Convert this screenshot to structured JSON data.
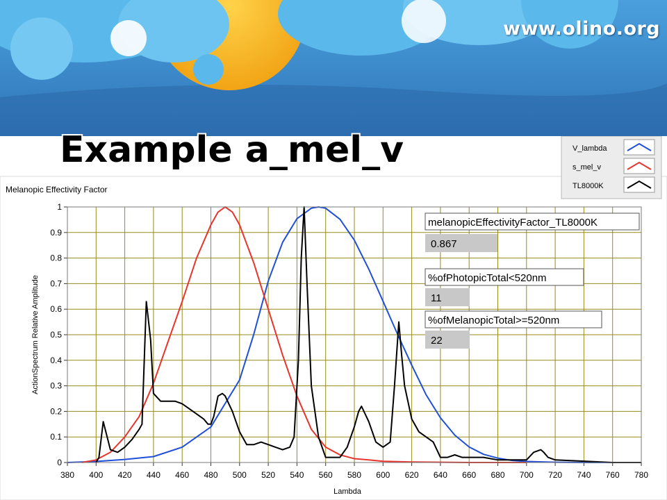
{
  "header": {
    "url": "www.olino.org",
    "slide_title": "Example a_mel_v"
  },
  "colors": {
    "sky": "#3d8fd1",
    "sky_dark": "#2a6db0",
    "sun": "#f5a912",
    "cloud": "#5ab8ea",
    "grid": "#9a8a1a",
    "v_lambda": "#1f4fd8",
    "s_mel_v": "#e8342c",
    "tl8000k": "#000000",
    "indicator_bg": "#c8c8c8"
  },
  "chart_data": {
    "type": "line",
    "title": "Melanopic Effectivity Factor",
    "xlabel": "Lambda",
    "ylabel": "ActionSpectrum Relative Amplitude",
    "xlim": [
      380,
      780
    ],
    "ylim": [
      0,
      1
    ],
    "xticks": [
      "380",
      "400",
      "420",
      "440",
      "460",
      "480",
      "500",
      "520",
      "540",
      "560",
      "580",
      "600",
      "620",
      "640",
      "660",
      "680",
      "700",
      "720",
      "740",
      "760",
      "780"
    ],
    "yticks": [
      "0",
      "0.1",
      "0.2",
      "0.3",
      "0.4",
      "0.5",
      "0.6",
      "0.7",
      "0.8",
      "0.9",
      "1"
    ],
    "grid": true,
    "legend_position": "top-right",
    "series": [
      {
        "name": "V_lambda",
        "x": [
          380,
          400,
          420,
          440,
          460,
          480,
          500,
          510,
          520,
          530,
          540,
          550,
          555,
          560,
          570,
          580,
          590,
          600,
          610,
          620,
          630,
          640,
          650,
          660,
          670,
          680,
          690,
          700,
          720,
          740,
          780
        ],
        "values": [
          0.0,
          0.004,
          0.012,
          0.023,
          0.06,
          0.139,
          0.323,
          0.503,
          0.71,
          0.862,
          0.954,
          0.995,
          1.0,
          0.995,
          0.952,
          0.87,
          0.757,
          0.631,
          0.503,
          0.381,
          0.265,
          0.175,
          0.107,
          0.061,
          0.032,
          0.017,
          0.008,
          0.004,
          0.001,
          0.0,
          0.0
        ]
      },
      {
        "name": "s_mel_v",
        "x": [
          390,
          400,
          410,
          420,
          430,
          440,
          450,
          460,
          470,
          480,
          485,
          490,
          495,
          500,
          510,
          520,
          530,
          540,
          550,
          560,
          570,
          580,
          590,
          600,
          620,
          640,
          660,
          700
        ],
        "values": [
          0.0,
          0.01,
          0.04,
          0.1,
          0.18,
          0.31,
          0.47,
          0.63,
          0.8,
          0.93,
          0.98,
          1.0,
          0.98,
          0.93,
          0.78,
          0.6,
          0.42,
          0.26,
          0.13,
          0.06,
          0.03,
          0.015,
          0.01,
          0.005,
          0.002,
          0.001,
          0.0,
          0.0
        ]
      },
      {
        "name": "TL8000K",
        "x": [
          400,
          402,
          405,
          410,
          415,
          420,
          425,
          430,
          432,
          435,
          438,
          440,
          445,
          450,
          455,
          460,
          465,
          470,
          475,
          478,
          480,
          482,
          485,
          488,
          490,
          495,
          500,
          505,
          510,
          515,
          520,
          525,
          530,
          535,
          538,
          541,
          543,
          545,
          547,
          550,
          555,
          560,
          565,
          570,
          575,
          580,
          583,
          585,
          590,
          595,
          600,
          605,
          608,
          611,
          613,
          615,
          620,
          625,
          630,
          635,
          640,
          645,
          650,
          655,
          660,
          665,
          670,
          680,
          690,
          700,
          705,
          710,
          712,
          715,
          720,
          760,
          780
        ],
        "values": [
          0.0,
          0.02,
          0.16,
          0.05,
          0.04,
          0.06,
          0.09,
          0.13,
          0.15,
          0.63,
          0.48,
          0.27,
          0.24,
          0.24,
          0.24,
          0.23,
          0.21,
          0.19,
          0.17,
          0.15,
          0.15,
          0.18,
          0.26,
          0.27,
          0.26,
          0.2,
          0.12,
          0.07,
          0.07,
          0.08,
          0.07,
          0.06,
          0.05,
          0.06,
          0.1,
          0.4,
          0.8,
          1.0,
          0.7,
          0.3,
          0.1,
          0.02,
          0.02,
          0.02,
          0.06,
          0.14,
          0.2,
          0.22,
          0.16,
          0.08,
          0.06,
          0.08,
          0.3,
          0.55,
          0.42,
          0.3,
          0.17,
          0.12,
          0.1,
          0.08,
          0.02,
          0.02,
          0.03,
          0.02,
          0.02,
          0.02,
          0.02,
          0.01,
          0.01,
          0.01,
          0.04,
          0.05,
          0.04,
          0.02,
          0.01,
          0.0,
          0.0
        ]
      }
    ],
    "indicators": [
      {
        "label": "melanopicEffectivityFactor_TL8000K",
        "value": "0.867"
      },
      {
        "label": "%ofPhotopicTotal<520nm",
        "value": "11"
      },
      {
        "label": "%ofMelanopicTotal>=520nm",
        "value": "22"
      }
    ]
  }
}
